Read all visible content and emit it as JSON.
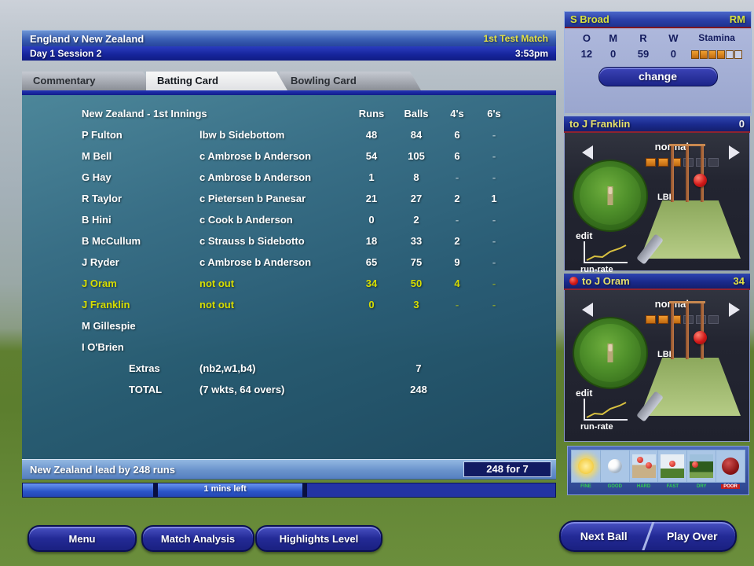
{
  "header": {
    "title": "England v New Zealand",
    "match_label": "1st Test Match",
    "session_label": "Day 1 Session 2",
    "time": "3:53pm"
  },
  "tabs": [
    {
      "label": "Commentary",
      "active": false
    },
    {
      "label": "Batting Card",
      "active": true
    },
    {
      "label": "Bowling Card",
      "active": false
    }
  ],
  "batting_card": {
    "innings_title": "New Zealand - 1st Innings",
    "columns": [
      "Runs",
      "Balls",
      "4's",
      "6's"
    ],
    "rows": [
      {
        "name": "P Fulton",
        "dismissal": "lbw b Sidebottom",
        "runs": "48",
        "balls": "84",
        "fours": "6",
        "sixes": "-",
        "not_out": false
      },
      {
        "name": "M Bell",
        "dismissal": "c Ambrose b Anderson",
        "runs": "54",
        "balls": "105",
        "fours": "6",
        "sixes": "-",
        "not_out": false
      },
      {
        "name": "G Hay",
        "dismissal": "c Ambrose b Anderson",
        "runs": "1",
        "balls": "8",
        "fours": "-",
        "sixes": "-",
        "not_out": false
      },
      {
        "name": "R Taylor",
        "dismissal": "c Pietersen b Panesar",
        "runs": "21",
        "balls": "27",
        "fours": "2",
        "sixes": "1",
        "not_out": false
      },
      {
        "name": "B Hini",
        "dismissal": "c Cook b Anderson",
        "runs": "0",
        "balls": "2",
        "fours": "-",
        "sixes": "-",
        "not_out": false
      },
      {
        "name": "B McCullum",
        "dismissal": "c Strauss b Sidebotto",
        "runs": "18",
        "balls": "33",
        "fours": "2",
        "sixes": "-",
        "not_out": false
      },
      {
        "name": "J Ryder",
        "dismissal": "c Ambrose b Anderson",
        "runs": "65",
        "balls": "75",
        "fours": "9",
        "sixes": "-",
        "not_out": false
      },
      {
        "name": "J Oram",
        "dismissal": "not out",
        "runs": "34",
        "balls": "50",
        "fours": "4",
        "sixes": "-",
        "not_out": true
      },
      {
        "name": "J Franklin",
        "dismissal": "not out",
        "runs": "0",
        "balls": "3",
        "fours": "-",
        "sixes": "-",
        "not_out": true
      },
      {
        "name": "M Gillespie",
        "dismissal": "",
        "runs": "",
        "balls": "",
        "fours": "",
        "sixes": "",
        "not_out": false
      },
      {
        "name": "I O'Brien",
        "dismissal": "",
        "runs": "",
        "balls": "",
        "fours": "",
        "sixes": "",
        "not_out": false
      }
    ],
    "extras": {
      "label": "Extras",
      "detail": "(nb2,w1,b4)",
      "value": "7"
    },
    "total": {
      "label": "TOTAL",
      "detail": "(7 wkts, 64 overs)",
      "value": "248"
    }
  },
  "status_bar": {
    "lead_text": "New Zealand lead by 248 runs",
    "score": "248 for 7"
  },
  "timer": {
    "label": "1 mins left"
  },
  "footer": {
    "menu": "Menu",
    "match_analysis": "Match Analysis",
    "highlights_level": "Highlights Level",
    "next_ball": "Next Ball",
    "play_over": "Play Over"
  },
  "bowler_panel": {
    "name": "S Broad",
    "bowling_type": "RM",
    "columns": [
      "O",
      "M",
      "R",
      "W",
      "Stamina"
    ],
    "overs": "12",
    "maidens": "0",
    "runs": "59",
    "wickets": "0",
    "stamina_filled": 4,
    "stamina_total": 6,
    "change_label": "change"
  },
  "batsman_panels": [
    {
      "title": "to J Franklin",
      "score": "0",
      "score_color": "#f0f0f0",
      "title_color": "#e6e06a",
      "aggression_label": "normal",
      "aggression_filled": 3,
      "aggression_total": 6,
      "edit_label": "edit",
      "runrate_label": "run-rate",
      "pitch_label": "LBI",
      "header_ball_icon": false
    },
    {
      "title": "to J Oram",
      "score": "34",
      "score_color": "#e2e044",
      "title_color": "#e6e06a",
      "aggression_label": "normal",
      "aggression_filled": 3,
      "aggression_total": 6,
      "edit_label": "edit",
      "runrate_label": "run-rate",
      "pitch_label": "LBI",
      "header_ball_icon": true
    }
  ],
  "conditions_panel": {
    "tiles": [
      {
        "icon": "sun-icon",
        "icon_class": "ic-sun",
        "label": "FINE",
        "label_color": "green"
      },
      {
        "icon": "light-ball-icon",
        "icon_class": "ic-ball",
        "label": "GOOD",
        "label_color": "green"
      },
      {
        "icon": "pitch-bounce-icon",
        "icon_class": "ic-p1",
        "label": "HARD",
        "label_color": "green"
      },
      {
        "icon": "pitch-pace-icon",
        "icon_class": "ic-p2",
        "label": "FAST",
        "label_color": "green"
      },
      {
        "icon": "outfield-icon",
        "icon_class": "ic-p3",
        "label": "DRY",
        "label_color": "green"
      },
      {
        "icon": "wear-icon",
        "icon_class": "ic-red",
        "label": "POOR",
        "label_color": "red"
      }
    ]
  },
  "colors": {
    "accent_yellow": "#e2e044",
    "not_out_yellow": "#d8de00",
    "stamina_orange": "#d9821a",
    "header_underline_red": "#8e2430"
  }
}
